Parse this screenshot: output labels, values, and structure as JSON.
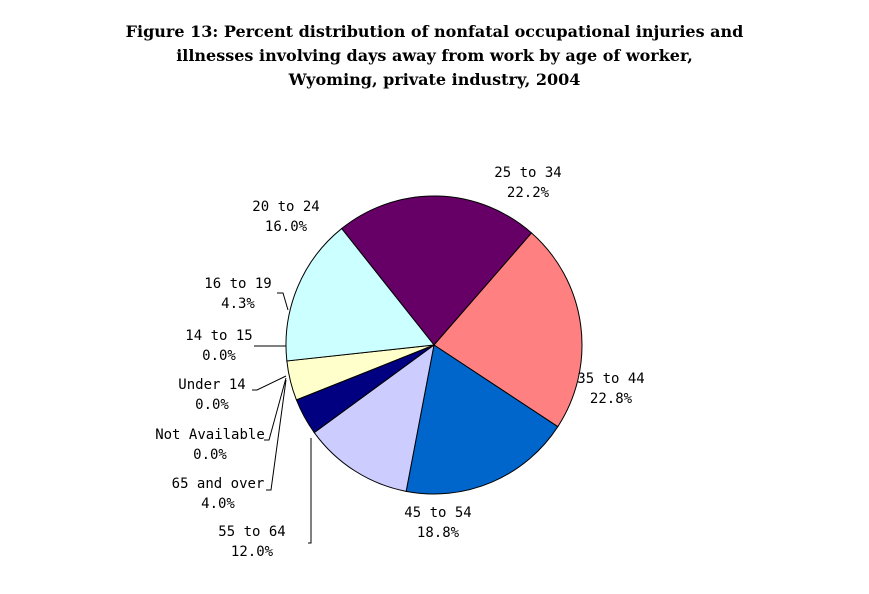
{
  "chart_data": {
    "type": "pie",
    "title_lines": [
      "Figure 13: Percent distribution of nonfatal occupational injuries and",
      "illnesses involving days away from work by age of worker,",
      "Wyoming, private industry, 2004"
    ],
    "slices": [
      {
        "label": "25 to 34",
        "value_label": "22.2%",
        "value": 22.2,
        "color": "#660066"
      },
      {
        "label": "35 to 44",
        "value_label": "22.8%",
        "value": 22.8,
        "color": "#FF8080"
      },
      {
        "label": "45 to 54",
        "value_label": "18.8%",
        "value": 18.8,
        "color": "#0066CC"
      },
      {
        "label": "55 to 64",
        "value_label": "12.0%",
        "value": 12.0,
        "color": "#CCCCFF"
      },
      {
        "label": "65 and over",
        "value_label": "4.0%",
        "value": 4.0,
        "color": "#000080"
      },
      {
        "label": "Not Available",
        "value_label": "0.0%",
        "value": 0.0,
        "color": "#FF00FF"
      },
      {
        "label": "Under 14",
        "value_label": "0.0%",
        "value": 0.0,
        "color": "#FFFF00"
      },
      {
        "label": "14 to 15",
        "value_label": "0.0%",
        "value": 0.0,
        "color": "#00FFFF"
      },
      {
        "label": "16 to 19",
        "value_label": "4.3%",
        "value": 4.3,
        "color": "#FFFFCC"
      },
      {
        "label": "20 to 24",
        "value_label": "16.0%",
        "value": 16.0,
        "color": "#CCFFFF"
      }
    ]
  }
}
